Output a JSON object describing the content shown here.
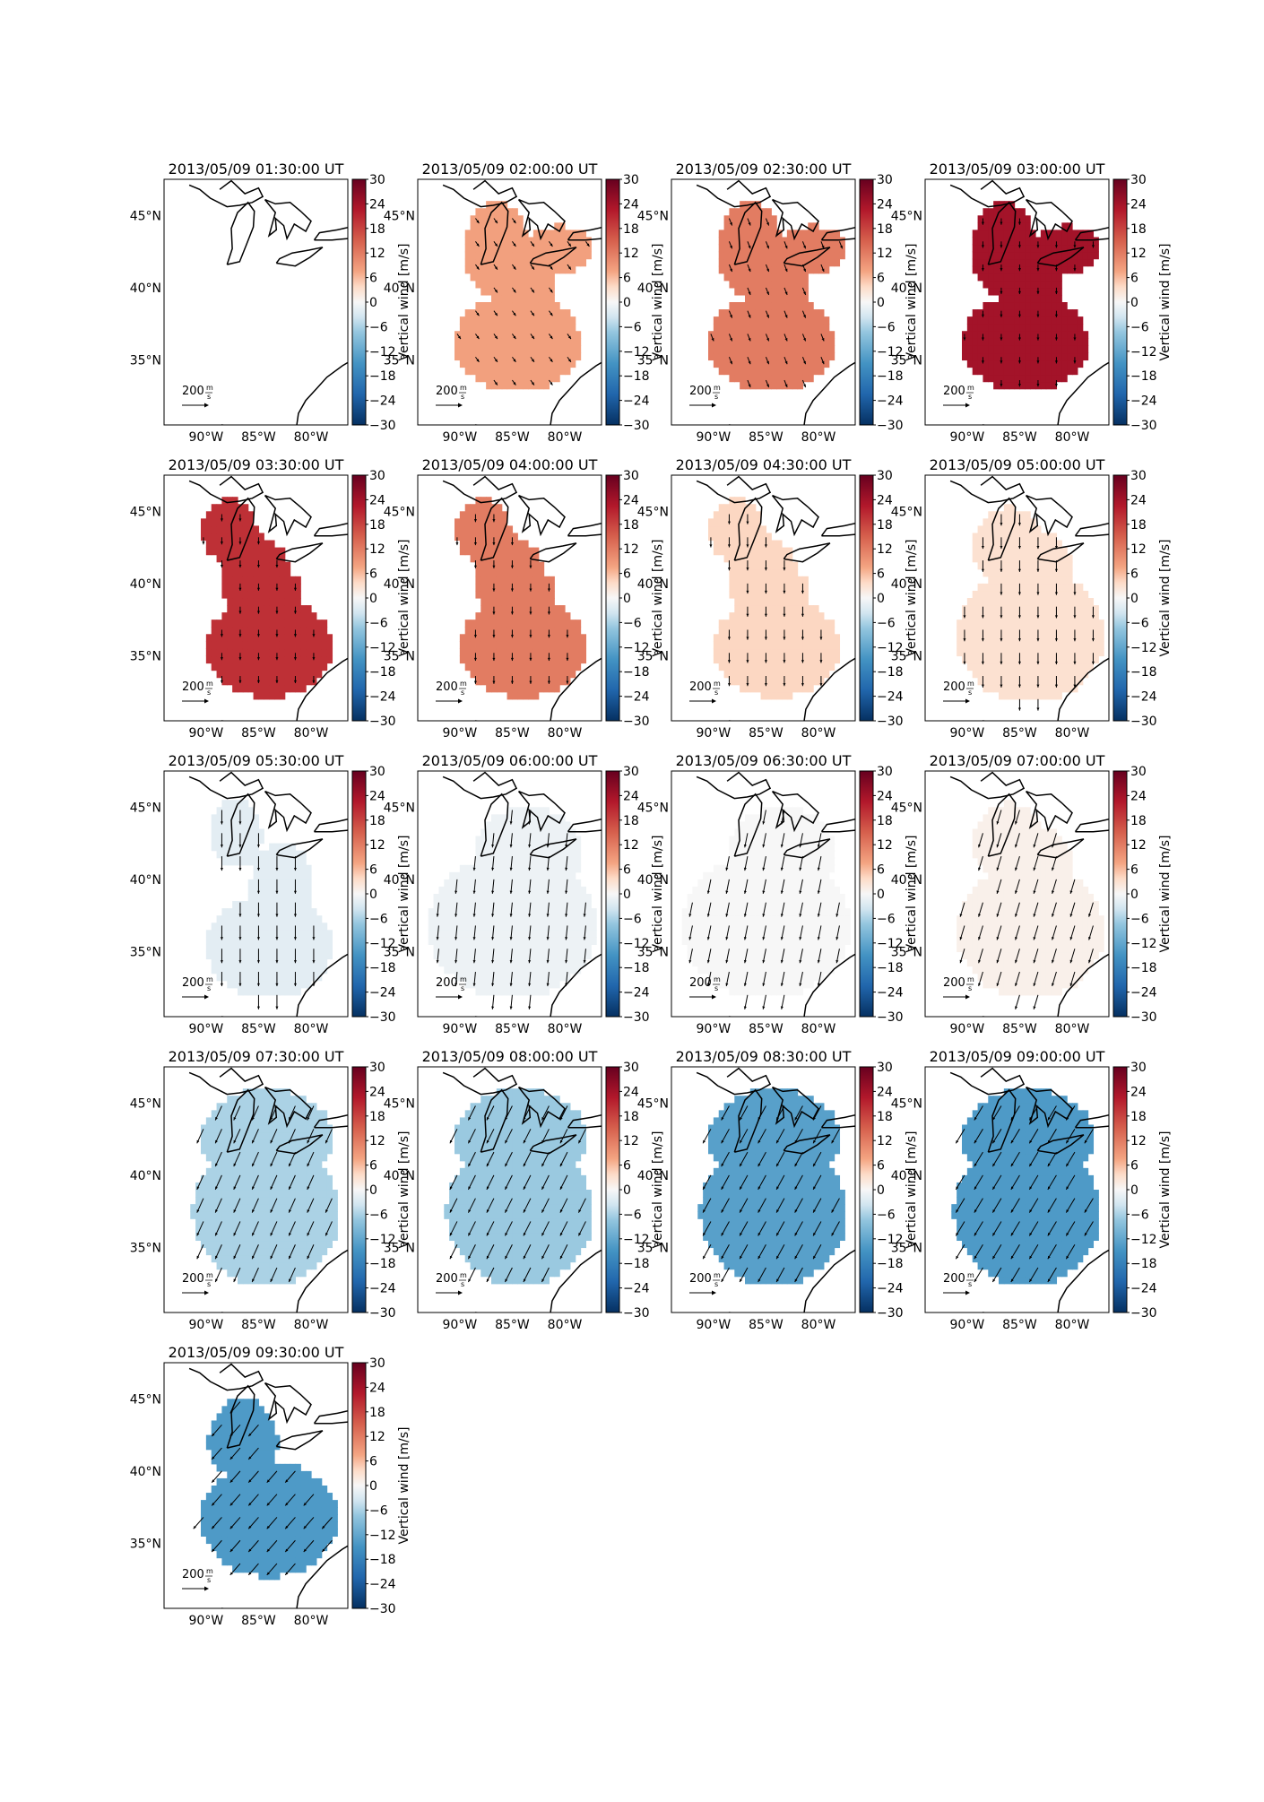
{
  "figure": {
    "colorbar_label": "Vertical wind [m/s]",
    "scale_label_value": "200",
    "scale_label_unit_num": "m",
    "scale_label_unit_den": "s"
  },
  "chart_data": {
    "type": "heatmap",
    "description_of_variable": "Vertical wind [m/s] with horizontal wind vectors over the Great Lakes / eastern US",
    "colorbar": {
      "min": -30,
      "max": 30,
      "ticks": [
        30,
        24,
        18,
        12,
        6,
        0,
        -6,
        -12,
        -18,
        -24,
        -30
      ],
      "colormap": "RdBu_r",
      "label": "Vertical wind [m/s]"
    },
    "x_ticks": [
      "90°W",
      "85°W",
      "80°W"
    ],
    "x_tick_values_deg": [
      -90,
      -85,
      -80
    ],
    "y_ticks": [
      "45°N",
      "40°N",
      "35°N"
    ],
    "y_tick_values_deg": [
      45,
      40,
      35
    ],
    "lon_range": [
      -94,
      -76.5
    ],
    "lat_range": [
      30.5,
      47.5
    ],
    "reference_vector": {
      "value": 200,
      "unit": "m/s"
    },
    "panels": [
      {
        "title": "2013/05/09 01:30:00 UT",
        "vertical_wind": null,
        "coverage": "none",
        "arrow_u": 0,
        "arrow_v": 0
      },
      {
        "title": "2013/05/09 02:00:00 UT",
        "vertical_wind": 8,
        "coverage": "A",
        "arrow_u": 0.25,
        "arrow_v": -0.35
      },
      {
        "title": "2013/05/09 02:30:00 UT",
        "vertical_wind": 12,
        "coverage": "A",
        "arrow_u": 0.2,
        "arrow_v": -0.5
      },
      {
        "title": "2013/05/09 03:00:00 UT",
        "vertical_wind": 24,
        "coverage": "A",
        "arrow_u": 0,
        "arrow_v": -0.45
      },
      {
        "title": "2013/05/09 03:30:00 UT",
        "vertical_wind": 20,
        "coverage": "B",
        "arrow_u": 0,
        "arrow_v": -0.5
      },
      {
        "title": "2013/05/09 04:00:00 UT",
        "vertical_wind": 12,
        "coverage": "B",
        "arrow_u": 0,
        "arrow_v": -0.55
      },
      {
        "title": "2013/05/09 04:30:00 UT",
        "vertical_wind": 4,
        "coverage": "B",
        "arrow_u": 0,
        "arrow_v": -0.7
      },
      {
        "title": "2013/05/09 05:00:00 UT",
        "vertical_wind": 3,
        "coverage": "C",
        "arrow_u": 0,
        "arrow_v": -0.8
      },
      {
        "title": "2013/05/09 05:30:00 UT",
        "vertical_wind": -2,
        "coverage": "D",
        "arrow_u": 0,
        "arrow_v": -1
      },
      {
        "title": "2013/05/09 06:00:00 UT",
        "vertical_wind": -1,
        "coverage": "E",
        "arrow_u": -0.1,
        "arrow_v": -1
      },
      {
        "title": "2013/05/09 06:30:00 UT",
        "vertical_wind": 0,
        "coverage": "E",
        "arrow_u": -0.2,
        "arrow_v": -1
      },
      {
        "title": "2013/05/09 07:00:00 UT",
        "vertical_wind": 1,
        "coverage": "C",
        "arrow_u": -0.3,
        "arrow_v": -1
      },
      {
        "title": "2013/05/09 07:30:00 UT",
        "vertical_wind": -6,
        "coverage": "F",
        "arrow_u": -0.45,
        "arrow_v": -1
      },
      {
        "title": "2013/05/09 08:00:00 UT",
        "vertical_wind": -7,
        "coverage": "F",
        "arrow_u": -0.5,
        "arrow_v": -1
      },
      {
        "title": "2013/05/09 08:30:00 UT",
        "vertical_wind": -13,
        "coverage": "F",
        "arrow_u": -0.55,
        "arrow_v": -1
      },
      {
        "title": "2013/05/09 09:00:00 UT",
        "vertical_wind": -14,
        "coverage": "F",
        "arrow_u": -0.6,
        "arrow_v": -1
      },
      {
        "title": "2013/05/09 09:30:00 UT",
        "vertical_wind": -14,
        "coverage": "G",
        "arrow_u": -0.7,
        "arrow_v": -0.8
      }
    ]
  }
}
